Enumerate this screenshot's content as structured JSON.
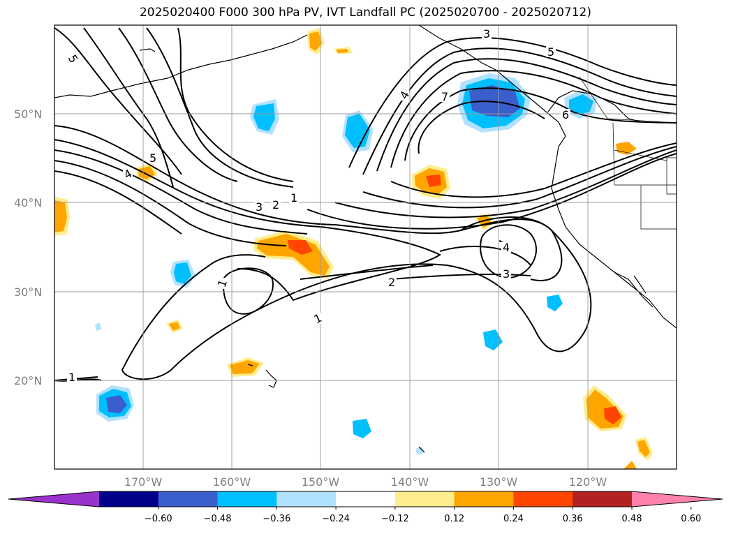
{
  "title": "2025020400 F000 300 hPa PV, IVT Landfall PC (2025020700 - 2025020712)",
  "map": {
    "projection": "PlateCarree",
    "lon_range": [
      -180,
      -110
    ],
    "lat_range": [
      10,
      60
    ],
    "lat_labels": [
      "50°N",
      "40°N",
      "30°N",
      "20°N"
    ],
    "lon_labels": [
      "170°W",
      "160°W",
      "150°W",
      "140°W",
      "130°W",
      "120°W"
    ],
    "gridlines": true
  },
  "contour_labels": [
    "5",
    "3",
    "4",
    "7",
    "5",
    "6",
    "5",
    "4",
    "3",
    "2",
    "1",
    "4",
    "3",
    "2",
    "1",
    "1",
    "1"
  ],
  "colorbar": {
    "ticks": [
      "−0.60",
      "−0.48",
      "−0.36",
      "−0.24",
      "−0.12",
      "0.12",
      "0.24",
      "0.36",
      "0.48",
      "0.60"
    ],
    "colors": [
      "#9a32cd",
      "#00008b",
      "#3a5fcd",
      "#00bfff",
      "#b0e2ff",
      "#ffffff",
      "#ffec8b",
      "#ffa500",
      "#ff4500",
      "#b22222",
      "#ff82ab"
    ]
  }
}
